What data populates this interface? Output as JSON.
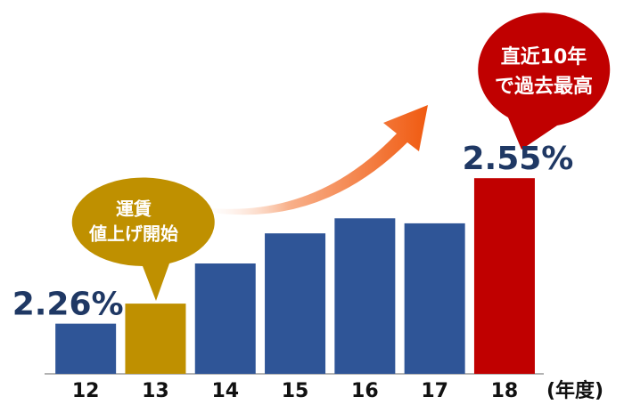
{
  "chart_data": {
    "type": "bar",
    "categories": [
      "12",
      "13",
      "14",
      "15",
      "16",
      "17",
      "18"
    ],
    "values": [
      2.26,
      2.3,
      2.38,
      2.44,
      2.47,
      2.46,
      2.55
    ],
    "value_labels": [
      "2.26%",
      null,
      null,
      null,
      null,
      null,
      "2.55%"
    ],
    "colors": [
      "#2f5597",
      "#bf9000",
      "#2f5597",
      "#2f5597",
      "#2f5597",
      "#2f5597",
      "#c00000"
    ],
    "ylim": [
      2.16,
      2.6
    ],
    "xlabel": "(年度)",
    "annotations": [
      [
        "運賃",
        "値上げ開始"
      ],
      [
        "直近10年",
        "で過去最高"
      ]
    ]
  }
}
